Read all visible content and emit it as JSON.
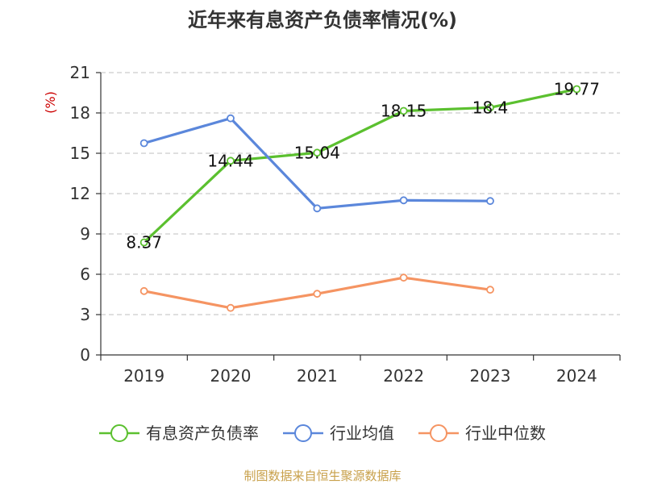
{
  "chart_data": {
    "type": "line",
    "title": "近年来有息资产负债率情况(%)",
    "y_unit": "(%)",
    "categories": [
      "2019",
      "2020",
      "2021",
      "2022",
      "2023",
      "2024"
    ],
    "ylim": [
      0,
      21
    ],
    "yticks": [
      0,
      3,
      6,
      9,
      12,
      15,
      18,
      21
    ],
    "grid": true,
    "legend_position": "bottom",
    "series": [
      {
        "name": "有息资产负债率",
        "color": "#5bc02f",
        "values": [
          8.37,
          14.44,
          15.04,
          18.15,
          18.4,
          19.77
        ],
        "labels": [
          "8.37",
          "14.44",
          "15.04",
          "18.15",
          "18.4",
          "19.77"
        ]
      },
      {
        "name": "行业均值",
        "color": "#5b87db",
        "values": [
          15.75,
          17.6,
          10.9,
          11.5,
          11.45,
          null
        ]
      },
      {
        "name": "行业中位数",
        "color": "#f59462",
        "values": [
          4.75,
          3.5,
          4.55,
          5.75,
          4.85,
          null
        ]
      }
    ]
  },
  "footer": {
    "source_text": "制图数据来自恒生聚源数据库",
    "source_color": "#c8a04a"
  },
  "colors": {
    "axis": "#333333",
    "grid": "#cccccc",
    "unit": "#cc0000",
    "text": "#333333"
  }
}
